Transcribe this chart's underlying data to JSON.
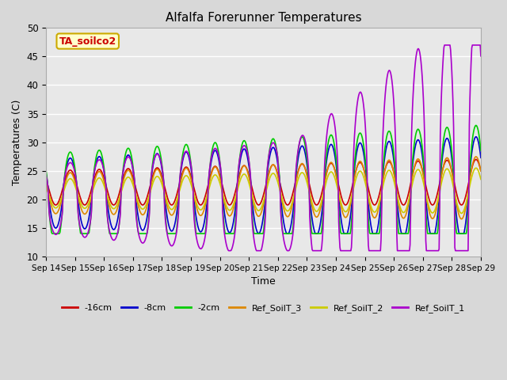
{
  "title": "Alfalfa Forerunner Temperatures",
  "xlabel": "Time",
  "ylabel": "Temperatures (C)",
  "ylim": [
    10,
    50
  ],
  "annotation_text": "TA_soilco2",
  "annotation_bg": "#ffffcc",
  "annotation_border": "#ccaa00",
  "annotation_text_color": "#cc0000",
  "plot_bg": "#e8e8e8",
  "fig_bg": "#d8d8d8",
  "series": [
    {
      "label": "-16cm",
      "color": "#cc0000",
      "lw": 1.2
    },
    {
      "label": "-8cm",
      "color": "#0000cc",
      "lw": 1.2
    },
    {
      "label": "-2cm",
      "color": "#00cc00",
      "lw": 1.2
    },
    {
      "label": "Ref_SoilT_3",
      "color": "#dd8800",
      "lw": 1.2
    },
    {
      "label": "Ref_SoilT_2",
      "color": "#cccc00",
      "lw": 1.2
    },
    {
      "label": "Ref_SoilT_1",
      "color": "#aa00cc",
      "lw": 1.2
    }
  ],
  "xtick_labels": [
    "Sep 14",
    "Sep 15",
    "Sep 16",
    "Sep 17",
    "Sep 18",
    "Sep 19",
    "Sep 20",
    "Sep 21",
    "Sep 22",
    "Sep 23",
    "Sep 24",
    "Sep 25",
    "Sep 26",
    "Sep 27",
    "Sep 28",
    "Sep 29"
  ],
  "ytick_vals": [
    10,
    15,
    20,
    25,
    30,
    35,
    40,
    45,
    50
  ],
  "grid_color": "#ffffff",
  "figsize": [
    6.4,
    4.8
  ],
  "dpi": 100
}
